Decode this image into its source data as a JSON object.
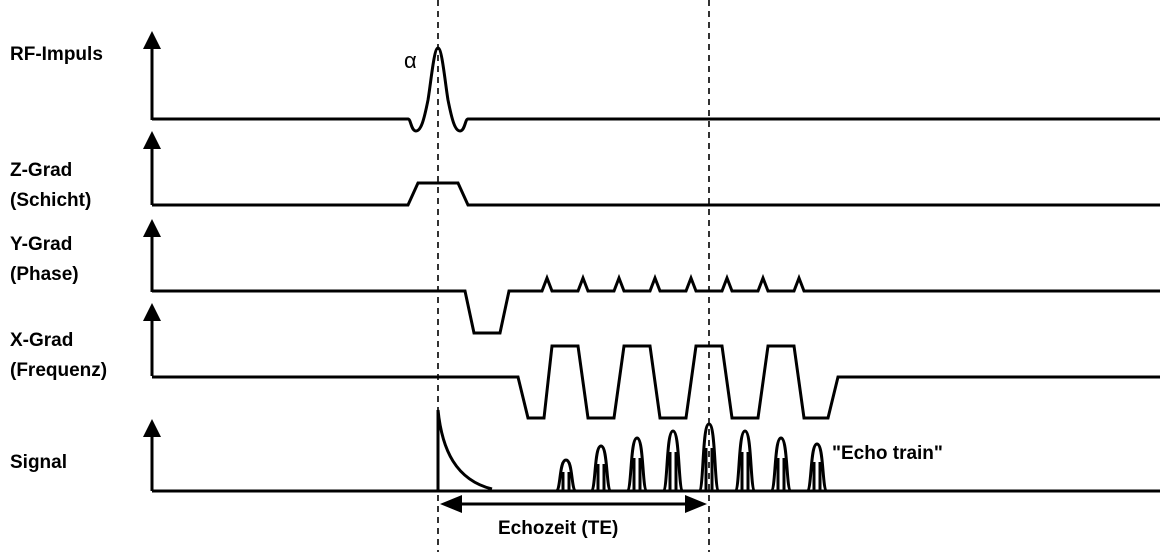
{
  "labels": {
    "rf": "RF-Impuls",
    "z": [
      "Z-Grad",
      "(Schicht)"
    ],
    "y": [
      "Y-Grad",
      "(Phase)"
    ],
    "x": [
      "X-Grad",
      "(Frequenz)"
    ],
    "signal": "Signal"
  },
  "flip_angle": "α",
  "echo_train": "\"Echo train\"",
  "echo_time": "Echozeit (TE)"
}
